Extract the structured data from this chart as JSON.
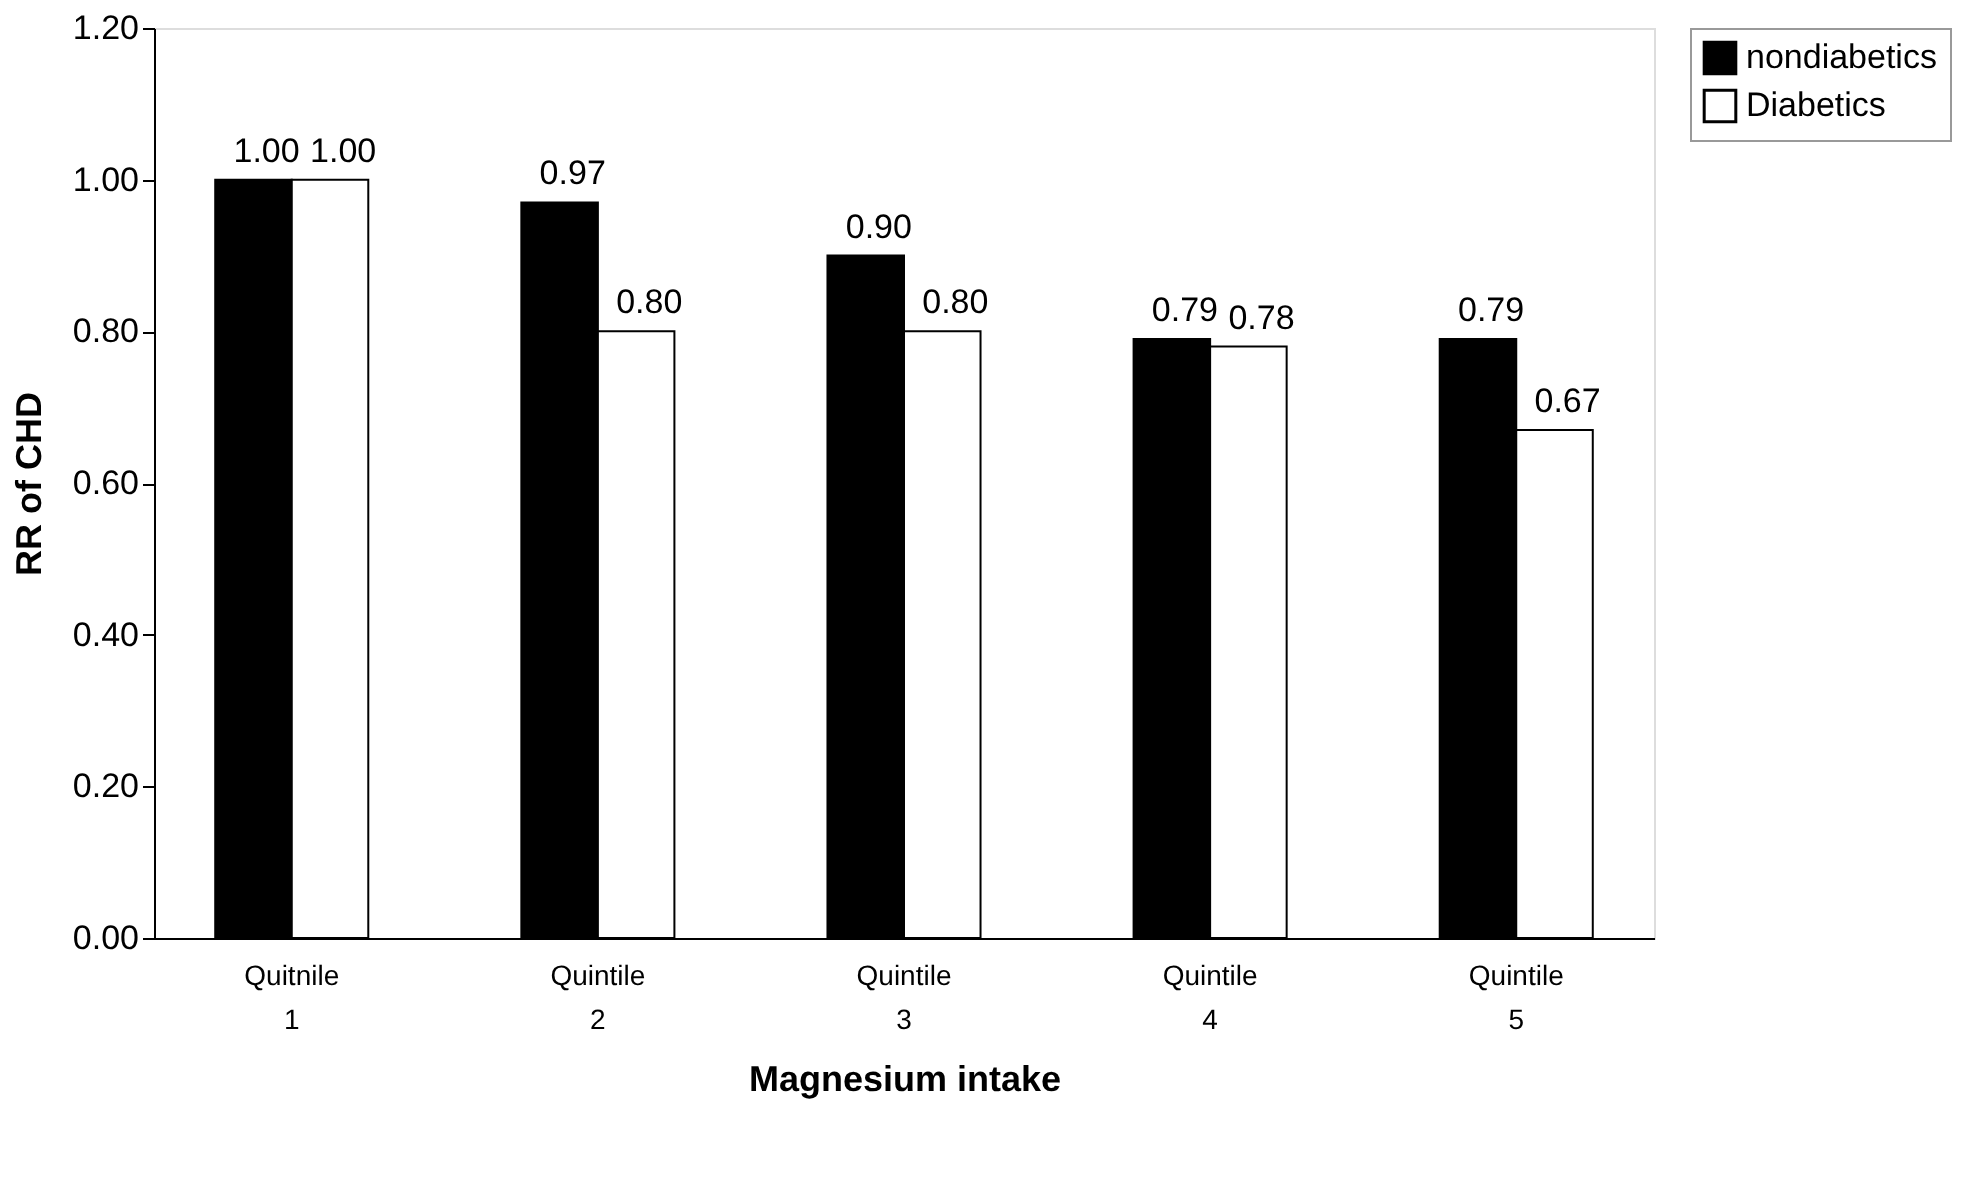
{
  "chart_data": {
    "type": "bar",
    "xlabel": "Magnesium intake",
    "ylabel": "RR of CHD",
    "categories": [
      "Quitnile 1",
      "Quintile 2",
      "Quintile 3",
      "Quintile 4",
      "Quintile 5"
    ],
    "series": [
      {
        "name": "nondiabetics",
        "color": "#000000",
        "values": [
          1.0,
          0.97,
          0.9,
          0.79,
          0.79
        ],
        "value_labels": [
          "1.00",
          "0.97",
          "0.90",
          "0.79",
          "0.79"
        ]
      },
      {
        "name": "Diabetics",
        "color": "#ffffff",
        "values": [
          1.0,
          0.8,
          0.8,
          0.78,
          0.67
        ],
        "value_labels": [
          "1.00",
          "0.80",
          "0.80",
          "0.78",
          "0.67"
        ]
      }
    ],
    "ylim": [
      0,
      1.2
    ],
    "yticks": [
      {
        "value": 0,
        "label": "0.00"
      },
      {
        "value": 0.2,
        "label": "0.20"
      },
      {
        "value": 0.4,
        "label": "0.40"
      },
      {
        "value": 0.6,
        "label": "0.60"
      },
      {
        "value": 0.8,
        "label": "0.80"
      },
      {
        "value": 1.0,
        "label": "1.00"
      },
      {
        "value": 1.2,
        "label": "1.20"
      }
    ],
    "grid": false,
    "legend": "right"
  }
}
